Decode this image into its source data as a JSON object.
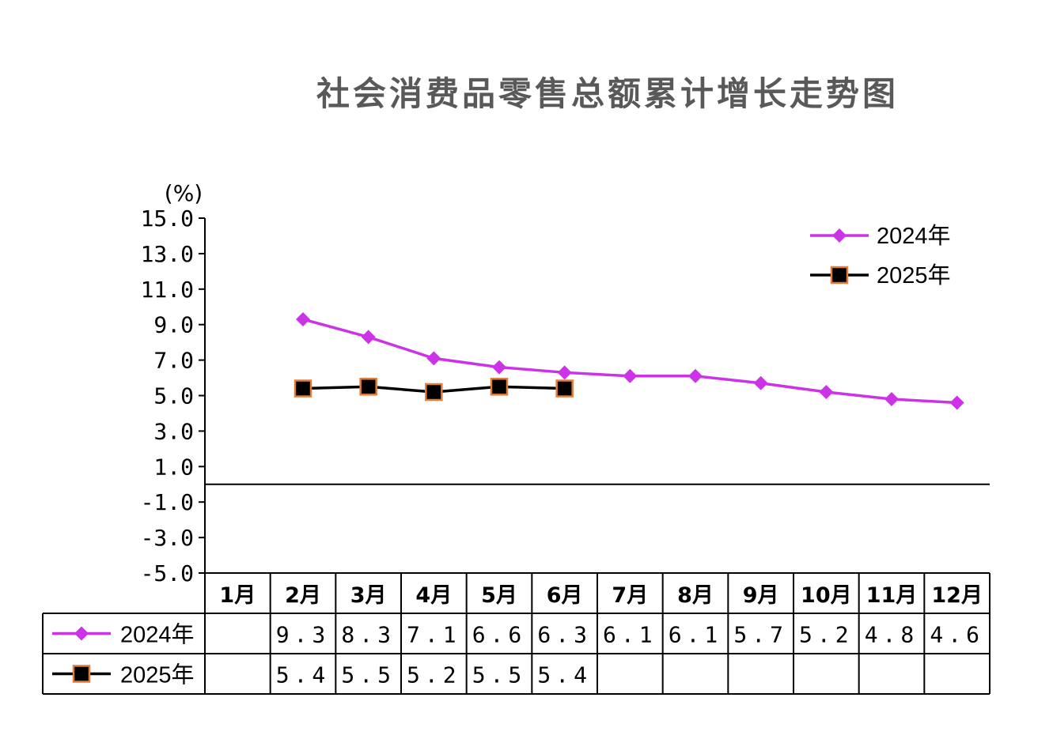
{
  "chart_data": {
    "type": "line",
    "title": "社会消费品零售总额累计增长走势图",
    "unit_label": "(%)",
    "categories": [
      "1月",
      "2月",
      "3月",
      "4月",
      "5月",
      "6月",
      "7月",
      "8月",
      "9月",
      "10月",
      "11月",
      "12月"
    ],
    "ylim": [
      -5.0,
      15.0
    ],
    "yticks": [
      "15.0",
      "13.0",
      "11.0",
      "9.0",
      "7.0",
      "5.0",
      "3.0",
      "1.0",
      "-1.0",
      "-3.0",
      "-5.0"
    ],
    "zero_line": 0,
    "legend_position": "top-right",
    "series": [
      {
        "name": "2024年",
        "color": "#cc33e6",
        "marker": "diamond",
        "values": [
          null,
          9.3,
          8.3,
          7.1,
          6.6,
          6.3,
          6.1,
          6.1,
          5.7,
          5.2,
          4.8,
          4.6
        ],
        "labels": [
          "",
          "9.3",
          "8.3",
          "7.1",
          "6.6",
          "6.3",
          "6.1",
          "6.1",
          "5.7",
          "5.2",
          "4.8",
          "4.6"
        ]
      },
      {
        "name": "2025年",
        "color": "#000000",
        "marker": "square",
        "marker_edge": "#e07b39",
        "values": [
          null,
          5.4,
          5.5,
          5.2,
          5.5,
          5.4,
          null,
          null,
          null,
          null,
          null,
          null
        ],
        "labels": [
          "",
          "5.4",
          "5.5",
          "5.2",
          "5.5",
          "5.4",
          "",
          "",
          "",
          "",
          "",
          ""
        ]
      }
    ]
  }
}
